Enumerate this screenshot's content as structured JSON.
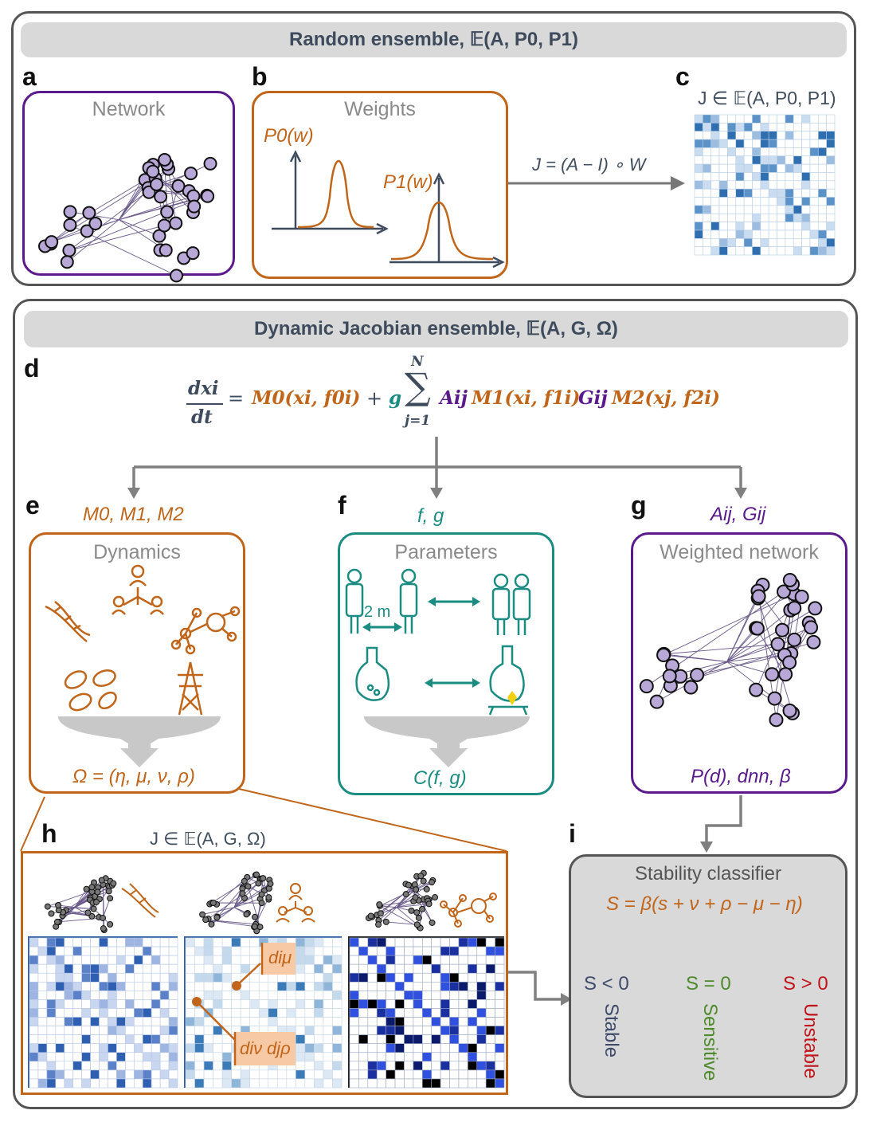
{
  "top": {
    "header": "Random ensemble, 𝔼(A, P0, P1)",
    "letters": [
      "a",
      "b",
      "c"
    ],
    "panel_a_title": "Network",
    "panel_b_title": "Weights",
    "p0_label": "P0(w)",
    "p1_label": "P1(w)",
    "arrow_label": "J = (A − I) ∘ W",
    "matrix_label": "J ∈ 𝔼(A, P0, P1)"
  },
  "bottom": {
    "header": "Dynamic Jacobian ensemble, 𝔼(A, G, Ω)",
    "letters": [
      "d",
      "e",
      "f",
      "g",
      "h",
      "i"
    ],
    "equation": {
      "lhs_num": "dxi",
      "lhs_den": "dt",
      "eq": "=",
      "m0": "M0(xi, f0i)",
      "plus": "+",
      "g": "g",
      "sum_top": "N",
      "sum_bottom": "j=1",
      "aij": "Aij",
      "m1": "M1(xi, f1i)",
      "gij": "Gij",
      "m2": "M2(xj, f2i)"
    },
    "e_label": "M0, M1, M2",
    "f_label": "f, g",
    "g_label": "Aij, Gij",
    "e_title": "Dynamics",
    "f_title": "Parameters",
    "g_title": "Weighted network",
    "e_output": "Ω = (η, μ, ν, ρ)",
    "f_output": "C(f, g)",
    "g_output": "P(d), dnn, β",
    "distance_label": "2 m",
    "h_matrix_label": "J ∈ 𝔼(A, G, Ω)",
    "h_annot_mu": "diμ",
    "h_annot_nu": "diν",
    "h_annot_rho": "djρ",
    "classifier": {
      "title": "Stability classifier",
      "formula": "S = β(s + ν + ρ − μ − η)",
      "cases": [
        {
          "cond": "S < 0",
          "label": "Stable",
          "color": "#3e4b6a"
        },
        {
          "cond": "S = 0",
          "label": "Sensitive",
          "color": "#4e8a2a"
        },
        {
          "cond": "S > 0",
          "label": "Unstable",
          "color": "#c0141a"
        }
      ]
    }
  },
  "colors": {
    "orange": "#c0651a",
    "teal": "#1a8c82",
    "purple": "#5a1a8c",
    "gray_header": "#d9d9d9",
    "matrix_blue": "#2f6fb0",
    "classifier_bg": "#d9d9d9"
  },
  "icons": [
    "dna-icon",
    "people-hierarchy-icon",
    "molecule-icon",
    "bacteria-icon",
    "power-tower-icon",
    "person-icon",
    "flask-icon",
    "heated-flask-icon"
  ]
}
